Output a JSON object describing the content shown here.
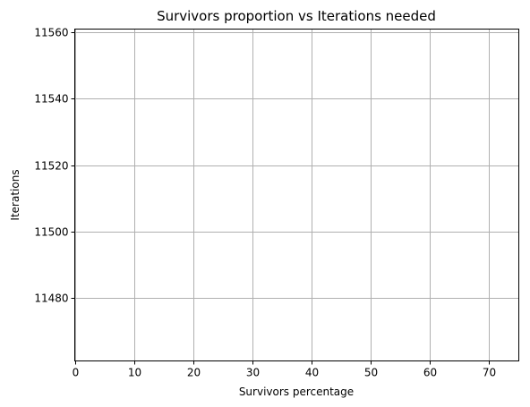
{
  "chart_data": {
    "type": "line",
    "title": "Survivors proportion vs Iterations needed",
    "xlabel": "Survivors percentage",
    "ylabel": "Iterations",
    "xlim": [
      0,
      75
    ],
    "ylim": [
      11461,
      11561
    ],
    "xticks": [
      0,
      10,
      20,
      30,
      40,
      50,
      60,
      70
    ],
    "yticks": [
      11480,
      11500,
      11520,
      11540,
      11560
    ],
    "grid": true,
    "series": []
  }
}
